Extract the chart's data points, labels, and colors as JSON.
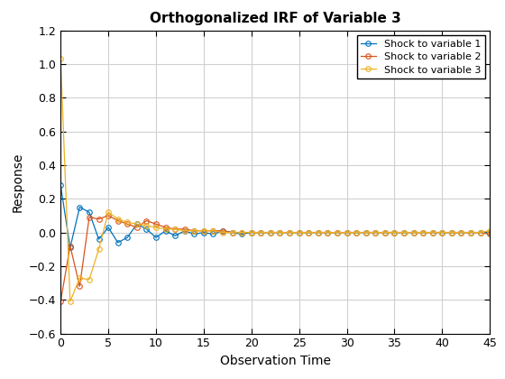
{
  "title": "Orthogonalized IRF of Variable 3",
  "xlabel": "Observation Time",
  "ylabel": "Response",
  "xlim": [
    0,
    45
  ],
  "ylim": [
    -0.6,
    1.2
  ],
  "yticks": [
    -0.6,
    -0.4,
    -0.2,
    0.0,
    0.2,
    0.4,
    0.6,
    0.8,
    1.0,
    1.2
  ],
  "xticks": [
    0,
    5,
    10,
    15,
    20,
    25,
    30,
    35,
    40,
    45
  ],
  "legend": [
    "Shock to variable 1",
    "Shock to variable 2",
    "Shock to variable 3"
  ],
  "colors": [
    "#0072BD",
    "#D95319",
    "#EDB120"
  ],
  "background_color": "#ffffff",
  "series1_y": [
    0.28,
    -0.09,
    0.15,
    0.12,
    -0.04,
    0.03,
    -0.06,
    -0.03,
    0.05,
    0.02,
    -0.03,
    0.01,
    -0.02,
    0.01,
    -0.01,
    0.0,
    -0.01,
    0.01,
    0.0,
    -0.01,
    0.0,
    0.0,
    0.0,
    0.0,
    0.0,
    0.0,
    0.0,
    0.0,
    0.0,
    0.0,
    0.0,
    0.0,
    0.0,
    0.0,
    0.0,
    0.0,
    0.0,
    0.0,
    0.0,
    0.0,
    0.0,
    0.0,
    0.0,
    0.0,
    0.0,
    0.0
  ],
  "series2_y": [
    -0.41,
    -0.08,
    -0.32,
    0.09,
    0.08,
    0.1,
    0.07,
    0.05,
    0.03,
    0.07,
    0.05,
    0.03,
    0.02,
    0.02,
    0.01,
    0.01,
    0.01,
    0.01,
    0.0,
    0.0,
    0.0,
    0.0,
    0.0,
    0.0,
    0.0,
    0.0,
    0.0,
    0.0,
    0.0,
    0.0,
    0.0,
    0.0,
    0.0,
    0.0,
    0.0,
    0.0,
    0.0,
    0.0,
    0.0,
    0.0,
    0.0,
    0.0,
    0.0,
    0.0,
    0.0,
    -0.01
  ],
  "series3_y": [
    1.03,
    -0.41,
    -0.27,
    -0.28,
    -0.1,
    0.12,
    0.08,
    0.06,
    0.05,
    0.04,
    0.03,
    0.02,
    0.02,
    0.01,
    0.01,
    0.01,
    0.01,
    0.0,
    0.0,
    0.0,
    0.0,
    0.0,
    0.0,
    0.0,
    0.0,
    0.0,
    0.0,
    0.0,
    0.0,
    0.0,
    0.0,
    0.0,
    0.0,
    0.0,
    0.0,
    0.0,
    0.0,
    0.0,
    0.0,
    0.0,
    0.0,
    0.0,
    0.0,
    0.0,
    0.0,
    0.01
  ]
}
